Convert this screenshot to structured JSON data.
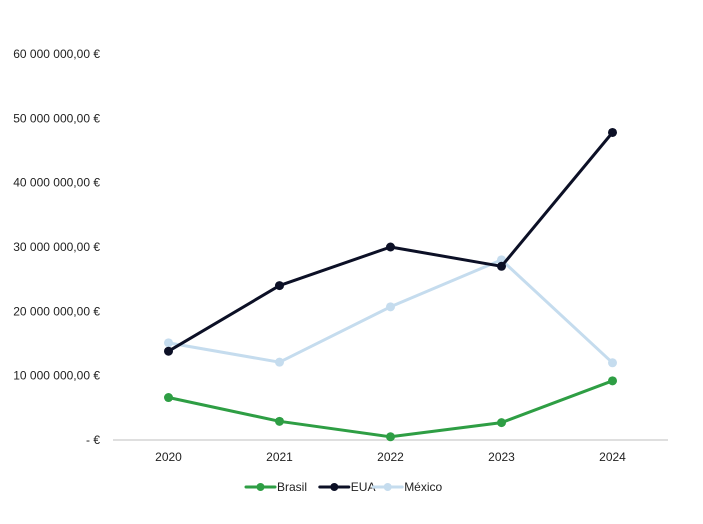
{
  "chart_data": {
    "type": "line",
    "title": "",
    "xlabel": "",
    "ylabel": "",
    "categories": [
      "2020",
      "2021",
      "2022",
      "2023",
      "2024"
    ],
    "ylim": [
      0,
      60000000
    ],
    "y_ticks": [
      {
        "value": 0,
        "label": "-  €"
      },
      {
        "value": 10000000,
        "label": "10 000 000,00 €"
      },
      {
        "value": 20000000,
        "label": "20 000 000,00 €"
      },
      {
        "value": 30000000,
        "label": "30 000 000,00 €"
      },
      {
        "value": 40000000,
        "label": "40 000 000,00 €"
      },
      {
        "value": 50000000,
        "label": "50 000 000,00 €"
      },
      {
        "value": 60000000,
        "label": "60 000 000,00 €"
      }
    ],
    "grid": false,
    "legend_position": "bottom",
    "series": [
      {
        "name": "Brasil",
        "color": "#2e9e44",
        "values": [
          6600000,
          2900000,
          500000,
          2700000,
          9200000
        ]
      },
      {
        "name": "EUA",
        "color": "#0c1026",
        "values": [
          13800000,
          24000000,
          30000000,
          27000000,
          47800000
        ]
      },
      {
        "name": "México",
        "color": "#c5dcee",
        "values": [
          15100000,
          12100000,
          20700000,
          28000000,
          12000000
        ]
      }
    ]
  }
}
